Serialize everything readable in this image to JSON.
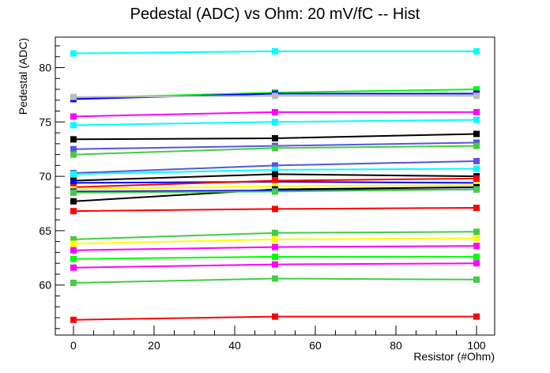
{
  "chart_data": {
    "type": "line",
    "title": "Pedestal (ADC) vs Ohm: 20 mV/fC -- Hist",
    "xlabel": "Resistor (#Ohm)",
    "ylabel": "Pedestal (ADC)",
    "xlim": [
      -4.5,
      104.5
    ],
    "ylim": [
      55.4,
      82.8
    ],
    "x_ticks": [
      "0",
      "20",
      "40",
      "60",
      "80",
      "100"
    ],
    "y_ticks": [
      "60",
      "65",
      "70",
      "75",
      "80"
    ],
    "x": [
      0,
      50,
      100
    ],
    "grid": false,
    "legend": "none",
    "series": [
      {
        "color": "#00ffff",
        "values": [
          81.3,
          81.5,
          81.5
        ]
      },
      {
        "color": "#00ff00",
        "values": [
          77.2,
          77.7,
          78.0
        ]
      },
      {
        "color": "#0000ff",
        "values": [
          77.1,
          77.6,
          77.6
        ]
      },
      {
        "color": "#bbbbbb",
        "values": [
          77.3,
          77.4,
          77.4
        ]
      },
      {
        "color": "#ff00ff",
        "values": [
          75.5,
          75.9,
          75.9
        ]
      },
      {
        "color": "#00ffff",
        "values": [
          74.7,
          75.0,
          75.2
        ]
      },
      {
        "color": "#000000",
        "values": [
          73.4,
          73.5,
          73.9
        ]
      },
      {
        "color": "#5555dd",
        "values": [
          72.5,
          72.8,
          73.1
        ]
      },
      {
        "color": "#44cc44",
        "values": [
          72.0,
          72.6,
          72.8
        ]
      },
      {
        "color": "#5555dd",
        "values": [
          70.3,
          71.0,
          71.4
        ]
      },
      {
        "color": "#00ffff",
        "values": [
          70.2,
          70.6,
          70.7
        ]
      },
      {
        "color": "#000000",
        "values": [
          69.6,
          70.2,
          70.0
        ]
      },
      {
        "color": "#0000ff",
        "values": [
          69.4,
          69.5,
          69.4
        ]
      },
      {
        "color": "#ff0000",
        "values": [
          69.0,
          69.6,
          69.8
        ]
      },
      {
        "color": "#ffff00",
        "values": [
          68.8,
          69.1,
          69.2
        ]
      },
      {
        "color": "#000000",
        "values": [
          67.7,
          68.8,
          69.0
        ]
      },
      {
        "color": "#0000ff",
        "values": [
          68.6,
          68.7,
          68.8
        ]
      },
      {
        "color": "#44cc44",
        "values": [
          68.5,
          68.6,
          68.8
        ]
      },
      {
        "color": "#ff0000",
        "values": [
          66.8,
          67.0,
          67.1
        ]
      },
      {
        "color": "#44cc44",
        "values": [
          64.2,
          64.8,
          64.9
        ]
      },
      {
        "color": "#ffff00",
        "values": [
          63.8,
          64.2,
          64.3
        ]
      },
      {
        "color": "#ff00ff",
        "values": [
          63.2,
          63.5,
          63.6
        ]
      },
      {
        "color": "#00ff00",
        "values": [
          62.4,
          62.6,
          62.6
        ]
      },
      {
        "color": "#ff00ff",
        "values": [
          61.6,
          61.9,
          62.0
        ]
      },
      {
        "color": "#44cc44",
        "values": [
          60.2,
          60.6,
          60.5
        ]
      },
      {
        "color": "#ff0000",
        "values": [
          56.8,
          57.1,
          57.1
        ]
      }
    ]
  }
}
